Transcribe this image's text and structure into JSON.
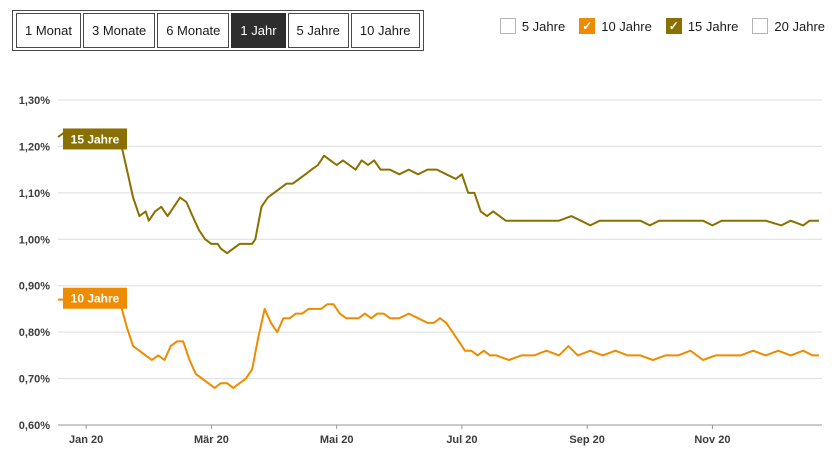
{
  "period_buttons": {
    "items": [
      {
        "label": "1 Monat",
        "active": false
      },
      {
        "label": "3 Monate",
        "active": false
      },
      {
        "label": "6 Monate",
        "active": false
      },
      {
        "label": "1 Jahr",
        "active": true
      },
      {
        "label": "5 Jahre",
        "active": false
      },
      {
        "label": "10 Jahre",
        "active": false
      }
    ]
  },
  "legend_checkboxes": {
    "items": [
      {
        "label": "5 Jahre",
        "checked": false,
        "color": null
      },
      {
        "label": "10 Jahre",
        "checked": true,
        "color": "#ef8b00"
      },
      {
        "label": "15 Jahre",
        "checked": true,
        "color": "#8a7000"
      },
      {
        "label": "20 Jahre",
        "checked": false,
        "color": null
      }
    ]
  },
  "chart_data": {
    "type": "line",
    "title": "",
    "xlabel": "",
    "ylabel": "",
    "grid": true,
    "ylim": [
      0.6,
      1.3
    ],
    "xlim": [
      0,
      12.2
    ],
    "y_ticks": [
      "1,30%",
      "1,20%",
      "1,10%",
      "1,00%",
      "0,90%",
      "0,80%",
      "0,70%",
      "0,60%"
    ],
    "x_tick_labels": [
      "Jan 20",
      "Mär 20",
      "Mai 20",
      "Jul 20",
      "Sep 20",
      "Nov 20"
    ],
    "x_tick_positions": [
      0.45,
      2.45,
      4.45,
      6.45,
      8.45,
      10.45
    ],
    "axis_color": "#999999",
    "grid_color": "#dddddd",
    "series": [
      {
        "name": "15 Jahre",
        "color": "#8a7000",
        "badge": {
          "text": "15 Jahre",
          "x": 0.08,
          "y": 1.215
        },
        "points": [
          [
            0,
            1.22
          ],
          [
            0.1,
            1.23
          ],
          [
            0.25,
            1.22
          ],
          [
            0.4,
            1.23
          ],
          [
            0.55,
            1.22
          ],
          [
            0.7,
            1.22
          ],
          [
            0.85,
            1.23
          ],
          [
            1.0,
            1.21
          ],
          [
            1.1,
            1.15
          ],
          [
            1.2,
            1.09
          ],
          [
            1.3,
            1.05
          ],
          [
            1.4,
            1.06
          ],
          [
            1.45,
            1.04
          ],
          [
            1.55,
            1.06
          ],
          [
            1.65,
            1.07
          ],
          [
            1.75,
            1.05
          ],
          [
            1.85,
            1.07
          ],
          [
            1.95,
            1.09
          ],
          [
            2.05,
            1.08
          ],
          [
            2.15,
            1.05
          ],
          [
            2.25,
            1.02
          ],
          [
            2.35,
            1.0
          ],
          [
            2.45,
            0.99
          ],
          [
            2.55,
            0.99
          ],
          [
            2.6,
            0.98
          ],
          [
            2.7,
            0.97
          ],
          [
            2.8,
            0.98
          ],
          [
            2.9,
            0.99
          ],
          [
            3.0,
            0.99
          ],
          [
            3.1,
            0.99
          ],
          [
            3.15,
            1.0
          ],
          [
            3.25,
            1.07
          ],
          [
            3.35,
            1.09
          ],
          [
            3.45,
            1.1
          ],
          [
            3.55,
            1.11
          ],
          [
            3.65,
            1.12
          ],
          [
            3.75,
            1.12
          ],
          [
            3.85,
            1.13
          ],
          [
            3.95,
            1.14
          ],
          [
            4.05,
            1.15
          ],
          [
            4.15,
            1.16
          ],
          [
            4.25,
            1.18
          ],
          [
            4.35,
            1.17
          ],
          [
            4.45,
            1.16
          ],
          [
            4.55,
            1.17
          ],
          [
            4.65,
            1.16
          ],
          [
            4.75,
            1.15
          ],
          [
            4.85,
            1.17
          ],
          [
            4.95,
            1.16
          ],
          [
            5.05,
            1.17
          ],
          [
            5.15,
            1.15
          ],
          [
            5.3,
            1.15
          ],
          [
            5.45,
            1.14
          ],
          [
            5.6,
            1.15
          ],
          [
            5.75,
            1.14
          ],
          [
            5.9,
            1.15
          ],
          [
            6.05,
            1.15
          ],
          [
            6.2,
            1.14
          ],
          [
            6.35,
            1.13
          ],
          [
            6.45,
            1.14
          ],
          [
            6.55,
            1.1
          ],
          [
            6.65,
            1.1
          ],
          [
            6.75,
            1.06
          ],
          [
            6.85,
            1.05
          ],
          [
            6.95,
            1.06
          ],
          [
            7.05,
            1.05
          ],
          [
            7.15,
            1.04
          ],
          [
            7.4,
            1.04
          ],
          [
            7.7,
            1.04
          ],
          [
            8.0,
            1.04
          ],
          [
            8.2,
            1.05
          ],
          [
            8.35,
            1.04
          ],
          [
            8.5,
            1.03
          ],
          [
            8.65,
            1.04
          ],
          [
            9.0,
            1.04
          ],
          [
            9.3,
            1.04
          ],
          [
            9.45,
            1.03
          ],
          [
            9.6,
            1.04
          ],
          [
            10.0,
            1.04
          ],
          [
            10.3,
            1.04
          ],
          [
            10.45,
            1.03
          ],
          [
            10.6,
            1.04
          ],
          [
            11.0,
            1.04
          ],
          [
            11.3,
            1.04
          ],
          [
            11.55,
            1.03
          ],
          [
            11.7,
            1.04
          ],
          [
            11.9,
            1.03
          ],
          [
            12.0,
            1.04
          ],
          [
            12.15,
            1.04
          ]
        ]
      },
      {
        "name": "10 Jahre",
        "color": "#ef8b00",
        "badge": {
          "text": "10 Jahre",
          "x": 0.08,
          "y": 0.872
        },
        "points": [
          [
            0,
            0.87
          ],
          [
            0.15,
            0.87
          ],
          [
            0.3,
            0.88
          ],
          [
            0.45,
            0.87
          ],
          [
            0.6,
            0.88
          ],
          [
            0.75,
            0.87
          ],
          [
            0.9,
            0.87
          ],
          [
            1.0,
            0.86
          ],
          [
            1.1,
            0.81
          ],
          [
            1.2,
            0.77
          ],
          [
            1.3,
            0.76
          ],
          [
            1.4,
            0.75
          ],
          [
            1.5,
            0.74
          ],
          [
            1.6,
            0.75
          ],
          [
            1.7,
            0.74
          ],
          [
            1.8,
            0.77
          ],
          [
            1.9,
            0.78
          ],
          [
            2.0,
            0.78
          ],
          [
            2.1,
            0.74
          ],
          [
            2.2,
            0.71
          ],
          [
            2.3,
            0.7
          ],
          [
            2.4,
            0.69
          ],
          [
            2.5,
            0.68
          ],
          [
            2.6,
            0.69
          ],
          [
            2.7,
            0.69
          ],
          [
            2.8,
            0.68
          ],
          [
            2.9,
            0.69
          ],
          [
            3.0,
            0.7
          ],
          [
            3.1,
            0.72
          ],
          [
            3.2,
            0.79
          ],
          [
            3.3,
            0.85
          ],
          [
            3.4,
            0.82
          ],
          [
            3.5,
            0.8
          ],
          [
            3.6,
            0.83
          ],
          [
            3.7,
            0.83
          ],
          [
            3.8,
            0.84
          ],
          [
            3.9,
            0.84
          ],
          [
            4.0,
            0.85
          ],
          [
            4.1,
            0.85
          ],
          [
            4.2,
            0.85
          ],
          [
            4.3,
            0.86
          ],
          [
            4.4,
            0.86
          ],
          [
            4.5,
            0.84
          ],
          [
            4.6,
            0.83
          ],
          [
            4.7,
            0.83
          ],
          [
            4.8,
            0.83
          ],
          [
            4.9,
            0.84
          ],
          [
            5.0,
            0.83
          ],
          [
            5.1,
            0.84
          ],
          [
            5.2,
            0.84
          ],
          [
            5.3,
            0.83
          ],
          [
            5.45,
            0.83
          ],
          [
            5.6,
            0.84
          ],
          [
            5.75,
            0.83
          ],
          [
            5.9,
            0.82
          ],
          [
            6.0,
            0.82
          ],
          [
            6.1,
            0.83
          ],
          [
            6.2,
            0.82
          ],
          [
            6.3,
            0.8
          ],
          [
            6.4,
            0.78
          ],
          [
            6.5,
            0.76
          ],
          [
            6.6,
            0.76
          ],
          [
            6.7,
            0.75
          ],
          [
            6.8,
            0.76
          ],
          [
            6.9,
            0.75
          ],
          [
            7.0,
            0.75
          ],
          [
            7.2,
            0.74
          ],
          [
            7.4,
            0.75
          ],
          [
            7.6,
            0.75
          ],
          [
            7.8,
            0.76
          ],
          [
            8.0,
            0.75
          ],
          [
            8.15,
            0.77
          ],
          [
            8.3,
            0.75
          ],
          [
            8.5,
            0.76
          ],
          [
            8.7,
            0.75
          ],
          [
            8.9,
            0.76
          ],
          [
            9.1,
            0.75
          ],
          [
            9.3,
            0.75
          ],
          [
            9.5,
            0.74
          ],
          [
            9.7,
            0.75
          ],
          [
            9.9,
            0.75
          ],
          [
            10.1,
            0.76
          ],
          [
            10.3,
            0.74
          ],
          [
            10.5,
            0.75
          ],
          [
            10.7,
            0.75
          ],
          [
            10.9,
            0.75
          ],
          [
            11.1,
            0.76
          ],
          [
            11.3,
            0.75
          ],
          [
            11.5,
            0.76
          ],
          [
            11.7,
            0.75
          ],
          [
            11.9,
            0.76
          ],
          [
            12.05,
            0.75
          ],
          [
            12.15,
            0.75
          ]
        ]
      }
    ]
  }
}
